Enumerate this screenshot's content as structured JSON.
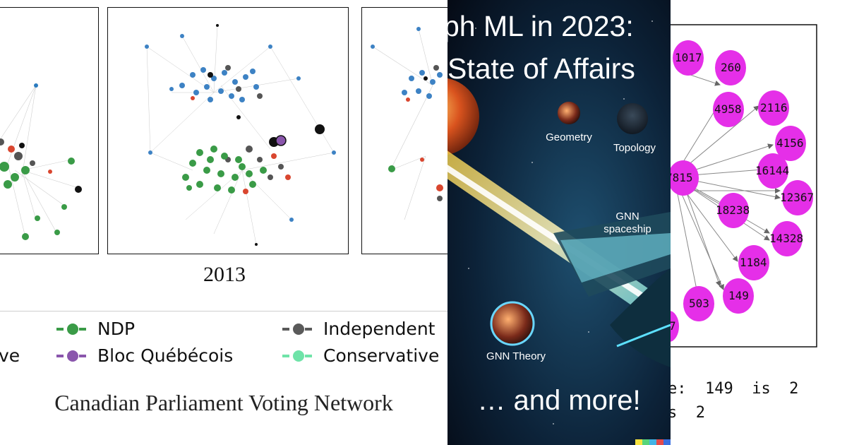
{
  "left": {
    "year_label": "2013",
    "legend": [
      {
        "label": "NDP",
        "color": "#3a9b47"
      },
      {
        "label": "Independent",
        "color": "#5a5a5a"
      },
      {
        "label": "ve",
        "color": "#2b7bbf"
      },
      {
        "label": "Bloc Québécois",
        "color": "#8a56ac"
      },
      {
        "label": "Conservative",
        "color": "#6fe3a8"
      }
    ],
    "caption": "Canadian Parliament Voting Network"
  },
  "middle": {
    "title_line1": "ph ML in 2023:",
    "title_line2": "State of Affairs",
    "geometry_label": "Geometry",
    "topology_label": "Topology",
    "spaceship_label_1": "GNN",
    "spaceship_label_2": "spaceship",
    "theory_label": "GNN Theory",
    "more_label": "… and more!"
  },
  "right": {
    "nodes": [
      "1017",
      "260",
      "4958",
      "2116",
      "4156",
      "16144",
      "12367",
      "7815",
      "18238",
      "14328",
      "1184",
      "149",
      "503",
      "7"
    ],
    "text_line1": "e:  149  is  2",
    "text_line2": "s  2"
  }
}
